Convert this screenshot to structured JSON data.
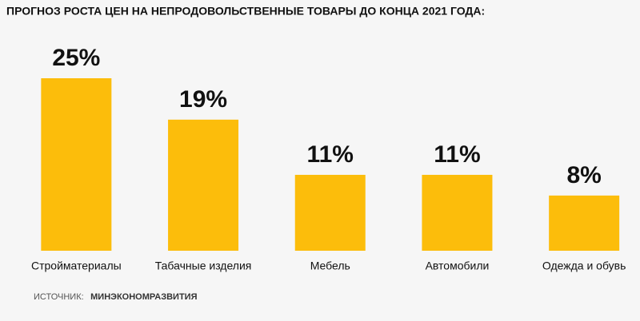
{
  "chart_data": {
    "type": "bar",
    "title": "ПРОГНОЗ РОСТА ЦЕН НА НЕПРОДОВОЛЬСТВЕННЫЕ ТОВАРЫ ДО КОНЦА 2021 ГОДА:",
    "categories": [
      "Стройматериалы",
      "Табачные изделия",
      "Мебель",
      "Автомобили",
      "Одежда и обувь"
    ],
    "values": [
      25,
      19,
      11,
      11,
      8
    ],
    "value_labels": [
      "25%",
      "19%",
      "11%",
      "11%",
      "8%"
    ],
    "color": "#fcbd0b",
    "source": {
      "label": "ИСТОЧНИК:",
      "text": "МИНЭКОНОМРАЗВИТИЯ"
    }
  }
}
